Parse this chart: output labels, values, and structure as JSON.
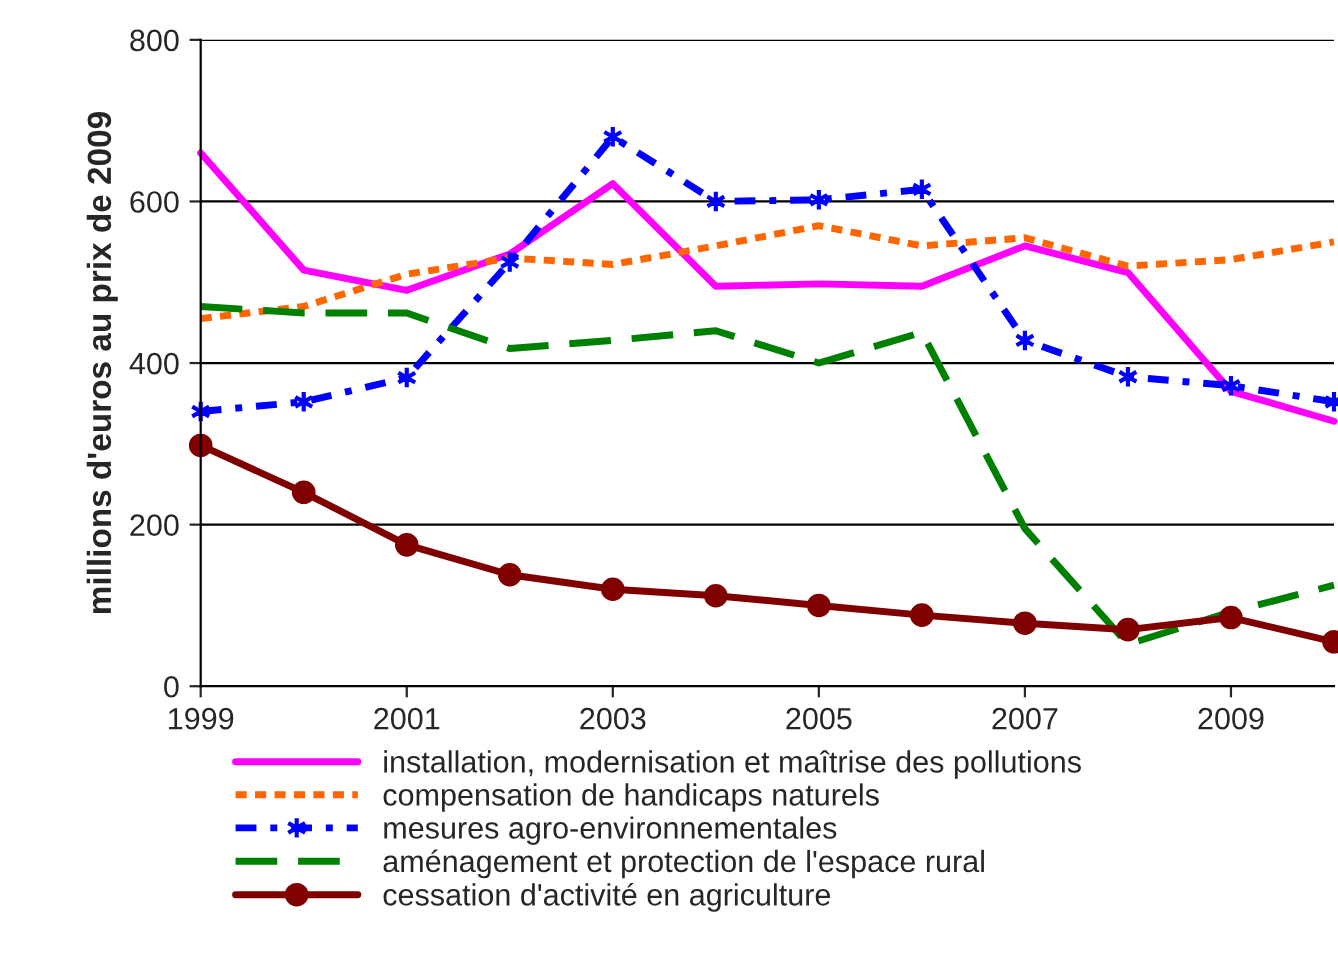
{
  "chart_data": {
    "type": "line",
    "ylabel": "millions d'euros au prix de 2009",
    "x": [
      1999,
      2000,
      2001,
      2002,
      2003,
      2004,
      2005,
      2006,
      2007,
      2008,
      2009,
      2010
    ],
    "xlim": [
      1999,
      2010
    ],
    "xticks": [
      1999,
      2001,
      2003,
      2005,
      2007,
      2009
    ],
    "ylim": [
      0,
      800
    ],
    "yticks": [
      0,
      200,
      400,
      600,
      800
    ],
    "grid": "y",
    "legend": "bottom",
    "series": [
      {
        "name": "installation, modernisation et maîtrise des pollutions",
        "color": "#ff00ff",
        "line_style": "solid",
        "marker": "none",
        "values": [
          660,
          515,
          490,
          535,
          622,
          495,
          498,
          495,
          545,
          512,
          365,
          328
        ]
      },
      {
        "name": "compensation de handicaps naturels",
        "color": "#ff6600",
        "line_style": "dotted",
        "marker": "none",
        "values": [
          455,
          470,
          510,
          530,
          522,
          545,
          570,
          545,
          555,
          520,
          528,
          550
        ]
      },
      {
        "name": "mesures agro-environnementales",
        "color": "#0000ff",
        "line_style": "dashdot",
        "marker": "cross",
        "values": [
          340,
          352,
          382,
          525,
          680,
          600,
          602,
          615,
          428,
          383,
          372,
          352
        ]
      },
      {
        "name": "aménagement et protection de l'espace rural",
        "color": "#008000",
        "line_style": "dashed",
        "marker": "none",
        "values": [
          470,
          462,
          462,
          418,
          428,
          440,
          400,
          438,
          195,
          52,
          92,
          125
        ]
      },
      {
        "name": "cessation d'activité en agriculture",
        "color": "#800000",
        "line_style": "solid",
        "marker": "circle",
        "values": [
          298,
          240,
          175,
          138,
          120,
          112,
          100,
          88,
          78,
          70,
          85,
          55
        ]
      }
    ]
  }
}
